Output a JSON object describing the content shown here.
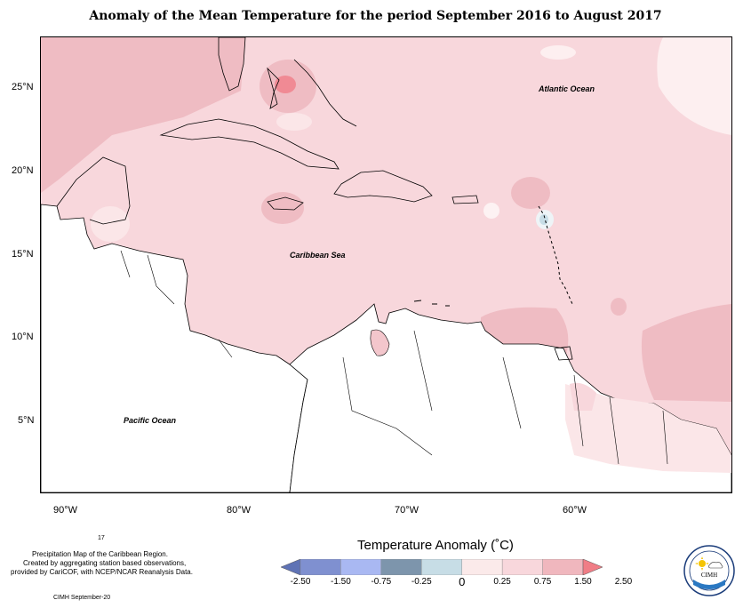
{
  "title": "Anomaly of the Mean Temperature for the period September 2016 to August 2017",
  "map": {
    "lat_ticks": [
      "25°N",
      "20°N",
      "15°N",
      "10°N",
      "5°N"
    ],
    "lon_ticks": [
      "90°W",
      "80°W",
      "70°W",
      "60°W"
    ],
    "labels": {
      "atlantic": "Atlantic Ocean",
      "caribbean": "Caribbean Sea",
      "pacific": "Pacific Ocean"
    }
  },
  "legend": {
    "title": "Temperature Anomaly (˚C)",
    "values": [
      "-2.50",
      "-1.50",
      "-0.75",
      "-0.25",
      "0",
      "0.25",
      "0.75",
      "1.50",
      "2.50"
    ],
    "colors": [
      "#5f73b5",
      "#7f90d0",
      "#a9b8f2",
      "#7d95ac",
      "#c7dde6",
      "#fbeaea",
      "#f8d7dc",
      "#f0b7be",
      "#f07d86"
    ]
  },
  "footnotes": {
    "number": "17",
    "line1": "Precipitation Map of the Caribbean Region.",
    "line2": "Created by aggregating station based observations,",
    "line3": "provided by CariCOF, with NCEP/NCAR Reanalysis Data.",
    "credit": "CIMH September-20"
  },
  "logo": {
    "text": "CIMH"
  }
}
